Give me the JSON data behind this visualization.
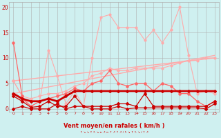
{
  "x": [
    0,
    1,
    2,
    3,
    4,
    5,
    6,
    7,
    8,
    9,
    10,
    11,
    12,
    13,
    14,
    15,
    16,
    17,
    18,
    19,
    20,
    21,
    22,
    23
  ],
  "line_rafales": [
    5.5,
    2.5,
    0.5,
    1.5,
    11.5,
    6.5,
    1.0,
    3.5,
    0.5,
    10.0,
    18.0,
    18.5,
    16.0,
    16.0,
    16.0,
    13.5,
    15.5,
    13.0,
    15.5,
    20.0,
    10.5,
    3.0,
    3.5,
    3.0
  ],
  "line_max": [
    13.0,
    2.5,
    null,
    null,
    null,
    null,
    null,
    null,
    null,
    null,
    null,
    null,
    null,
    null,
    null,
    null,
    null,
    null,
    null,
    null,
    null,
    null,
    null,
    null
  ],
  "line_med": [
    3.0,
    2.0,
    0.5,
    1.5,
    2.0,
    2.5,
    3.0,
    4.0,
    3.5,
    5.0,
    5.5,
    7.5,
    5.0,
    4.5,
    5.0,
    5.0,
    3.5,
    5.0,
    4.5,
    3.0,
    3.0,
    1.5,
    0.5,
    1.5
  ],
  "line_mean": [
    3.0,
    2.0,
    1.5,
    1.5,
    2.0,
    1.5,
    2.5,
    3.5,
    3.5,
    3.5,
    3.5,
    3.5,
    3.5,
    3.5,
    3.5,
    3.5,
    3.5,
    3.5,
    3.5,
    3.5,
    3.5,
    3.5,
    3.5,
    3.5
  ],
  "line_q3": [
    5.5,
    2.5,
    2.0,
    2.5,
    3.0,
    3.0,
    3.5,
    4.5,
    5.0,
    6.5,
    7.0,
    8.0,
    7.5,
    7.5,
    8.0,
    8.0,
    8.0,
    8.0,
    8.5,
    9.0,
    9.5,
    9.5,
    10.0,
    10.0
  ],
  "line_q1": [
    2.5,
    1.5,
    0.3,
    0.5,
    1.5,
    0.5,
    0.5,
    2.5,
    0.5,
    0.5,
    0.5,
    0.5,
    1.0,
    1.0,
    0.5,
    3.0,
    0.5,
    0.5,
    0.5,
    0.5,
    0.5,
    0.5,
    0.5,
    1.5
  ],
  "line_min": [
    0.0,
    0.5,
    0.0,
    0.0,
    0.0,
    1.0,
    0.0,
    0.5,
    0.5,
    0.0,
    0.0,
    0.0,
    0.5,
    0.0,
    0.2,
    0.2,
    0.2,
    0.2,
    0.2,
    0.2,
    0.2,
    0.2,
    0.0,
    1.0
  ],
  "trend1_x": [
    0,
    23
  ],
  "trend1_y": [
    3.0,
    10.5
  ],
  "trend2_x": [
    0,
    23
  ],
  "trend2_y": [
    5.5,
    10.0
  ],
  "bg_color": "#cff0f0",
  "grid_color": "#b0b0b0",
  "color_dark": "#cc0000",
  "color_mid": "#ff6666",
  "color_light": "#ffaaaa",
  "xlabel": "Vent moyen/en rafales ( km/h )",
  "yticks": [
    0,
    5,
    10,
    15,
    20
  ],
  "xlim": [
    -0.5,
    23.5
  ],
  "ylim": [
    -0.5,
    21
  ]
}
